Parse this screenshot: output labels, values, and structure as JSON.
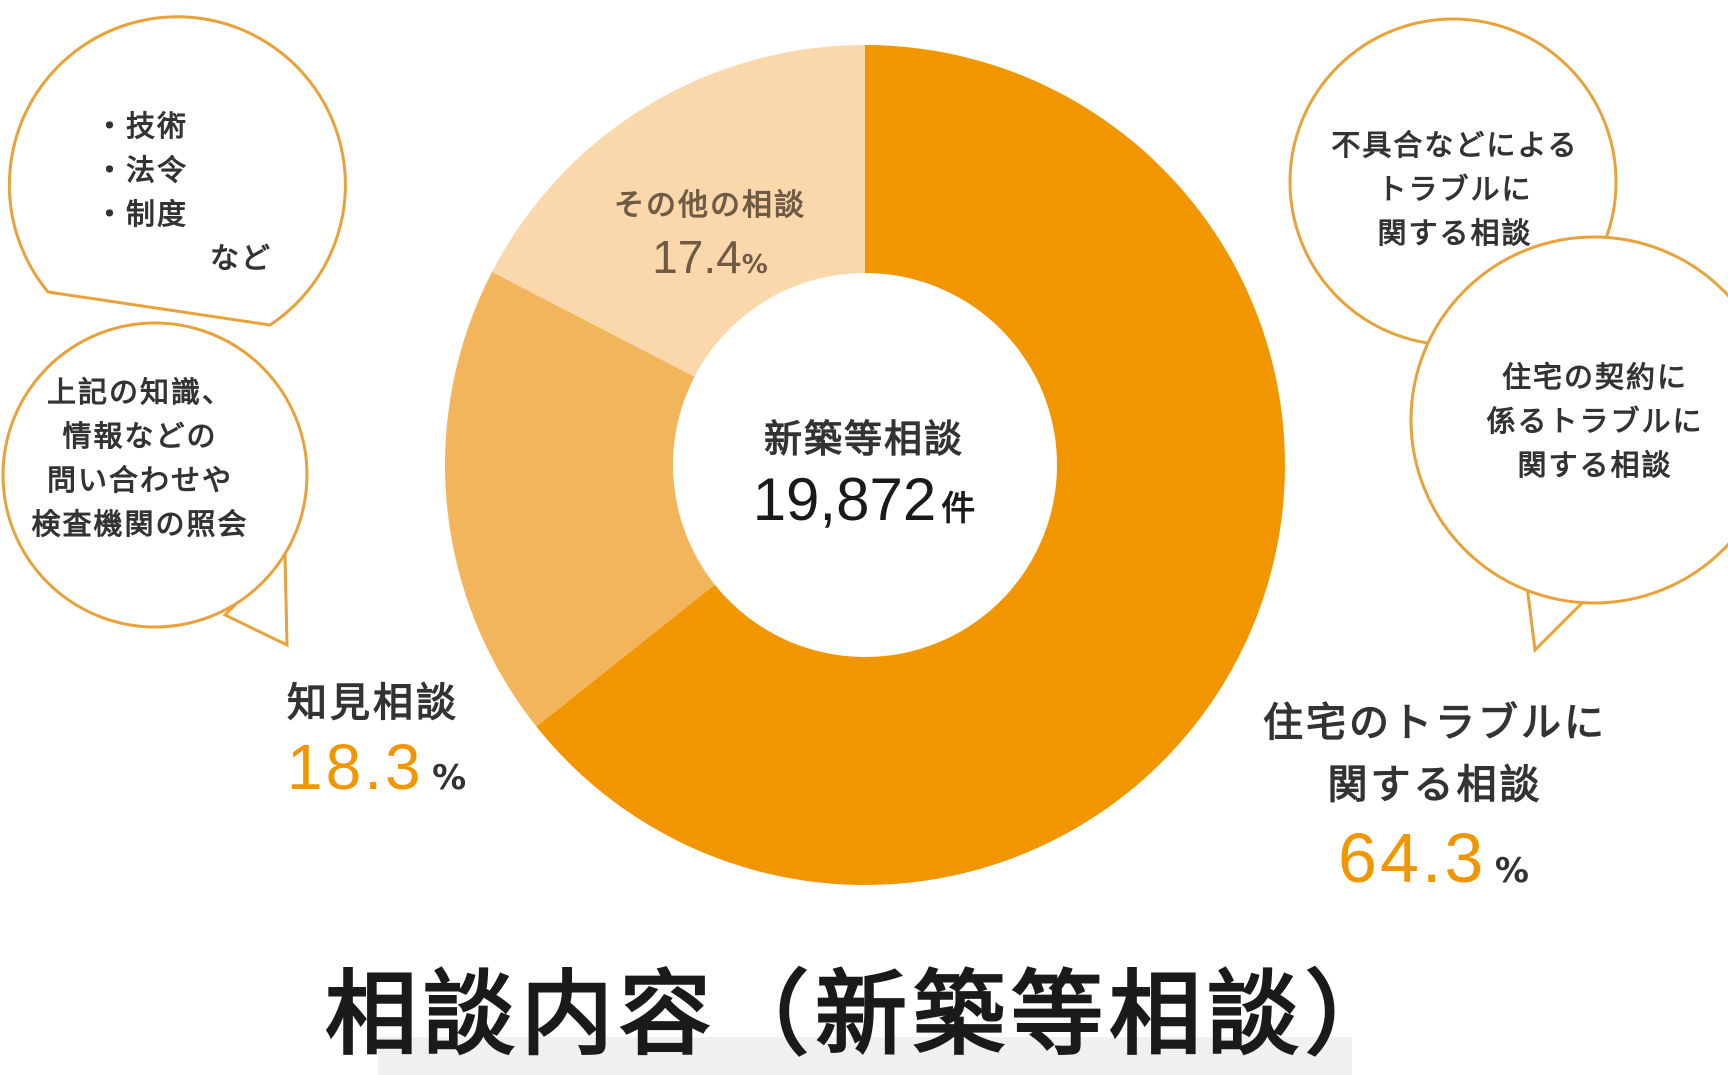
{
  "title": "相談内容（新築等相談）",
  "chart_data": {
    "type": "pie",
    "style": "donut",
    "center_label": "新築等相談",
    "total_value": "19,872",
    "total_unit": "件",
    "slices": [
      {
        "label_lines": [
          "住宅のトラブルに",
          "関する相談"
        ],
        "value": 64.3,
        "display": "64.3",
        "unit": "%",
        "color": "#f29600"
      },
      {
        "label_lines": [
          "知見相談"
        ],
        "value": 18.3,
        "display": "18.3",
        "unit": "%",
        "color": "#f3b55c"
      },
      {
        "label_lines": [
          "その他の相談"
        ],
        "value": 17.4,
        "display": "17.4",
        "unit": "%",
        "color": "#fad8ab"
      }
    ],
    "accent_color": "#f29600"
  },
  "bubbles": {
    "tech": {
      "lines": [
        "・技術",
        "・法令",
        "・制度"
      ],
      "suffix": "など"
    },
    "knowledge": {
      "lines": [
        "上記の知識、",
        "情報などの",
        "問い合わせや",
        "検査機関の照会"
      ]
    },
    "defect": {
      "lines": [
        "不具合などによる",
        "トラブルに",
        "関する相談"
      ]
    },
    "contract": {
      "lines": [
        "住宅の契約に",
        "係るトラブルに",
        "関する相談"
      ]
    }
  }
}
